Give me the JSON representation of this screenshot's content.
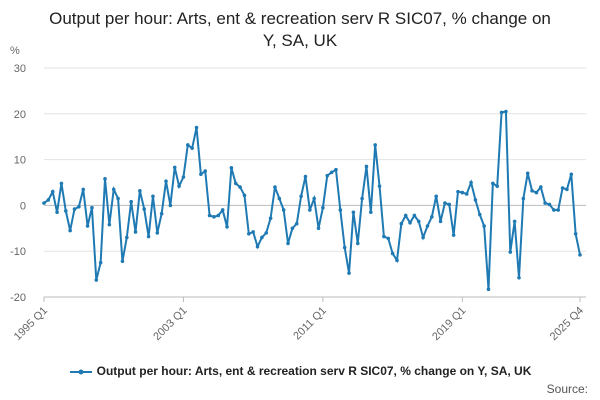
{
  "chart_data": {
    "type": "line",
    "title": "Output per hour: Arts, ent & recreation serv R SIC07, % change on Y, SA, UK",
    "y_label": "%",
    "source": "Source:",
    "categories": [
      "1995 Q1",
      null,
      null,
      null,
      null,
      null,
      null,
      null,
      null,
      null,
      null,
      null,
      null,
      null,
      null,
      null,
      null,
      null,
      null,
      null,
      null,
      null,
      null,
      null,
      null,
      null,
      null,
      null,
      null,
      null,
      null,
      null,
      "2003 Q1",
      null,
      null,
      null,
      null,
      null,
      null,
      null,
      null,
      null,
      null,
      null,
      null,
      null,
      null,
      null,
      null,
      null,
      null,
      null,
      null,
      null,
      null,
      null,
      null,
      null,
      null,
      null,
      null,
      null,
      null,
      null,
      "2011 Q1",
      null,
      null,
      null,
      null,
      null,
      null,
      null,
      null,
      null,
      null,
      null,
      null,
      null,
      null,
      null,
      null,
      null,
      null,
      null,
      null,
      null,
      null,
      null,
      null,
      null,
      null,
      null,
      null,
      null,
      null,
      null,
      "2019 Q1",
      null,
      null,
      null,
      null,
      null,
      null,
      null,
      null,
      null,
      null,
      null,
      null,
      null,
      null,
      null,
      null,
      null,
      null,
      null,
      null,
      null,
      null,
      null,
      null,
      null,
      null,
      "2025 Q4"
    ],
    "series": [
      {
        "name": "Output per hour: Arts, ent & recreation serv R SIC07, % change on Y, SA, UK",
        "color": "#1f7ab3",
        "values": [
          0.5,
          1.2,
          3,
          -1.5,
          4.8,
          -1.2,
          -5.5,
          -0.8,
          -0.3,
          3.5,
          -4.5,
          -0.5,
          -16.3,
          -12.5,
          5.8,
          -4.2,
          3.5,
          1.5,
          -12.2,
          -7,
          0.8,
          -5.8,
          3.2,
          -0.8,
          -6.8,
          2,
          -6,
          -1.8,
          5.3,
          0,
          8.3,
          4.2,
          6.2,
          13.2,
          12.5,
          17,
          6.8,
          7.5,
          -2.2,
          -2.5,
          -2.2,
          -1,
          -4.7,
          8.2,
          4.8,
          4,
          2.2,
          -6.2,
          -5.8,
          -9,
          -7,
          -6,
          -2.8,
          4,
          1.5,
          -1,
          -8.3,
          -5,
          -4,
          2,
          6.3,
          -1,
          1.5,
          -5,
          -0.5,
          6.5,
          7.2,
          7.8,
          -1,
          -9.2,
          -14.8,
          -1.5,
          -8.3,
          1.5,
          8.5,
          -1.5,
          13.2,
          4.2,
          -6.8,
          -7.2,
          -10.5,
          -12,
          -4,
          -2.2,
          -3.8,
          -2.2,
          -3.5,
          -7,
          -4.5,
          -2.5,
          2,
          -3.5,
          0.5,
          0.2,
          -6.5,
          3,
          2.8,
          2.5,
          5,
          1.2,
          -2,
          -4.5,
          -18.3,
          4.8,
          4.2,
          20.3,
          20.5,
          -10.2,
          -3.5,
          -15.8,
          1.5,
          7,
          3.2,
          2.8,
          4,
          0.5,
          0.2,
          -1,
          -1,
          3.8,
          3.5,
          6.8,
          -6.2,
          -10.8
        ]
      }
    ],
    "ylim": [
      -20,
      30
    ],
    "yticks": [
      -20,
      -10,
      0,
      10,
      20,
      30
    ],
    "grid": true
  }
}
